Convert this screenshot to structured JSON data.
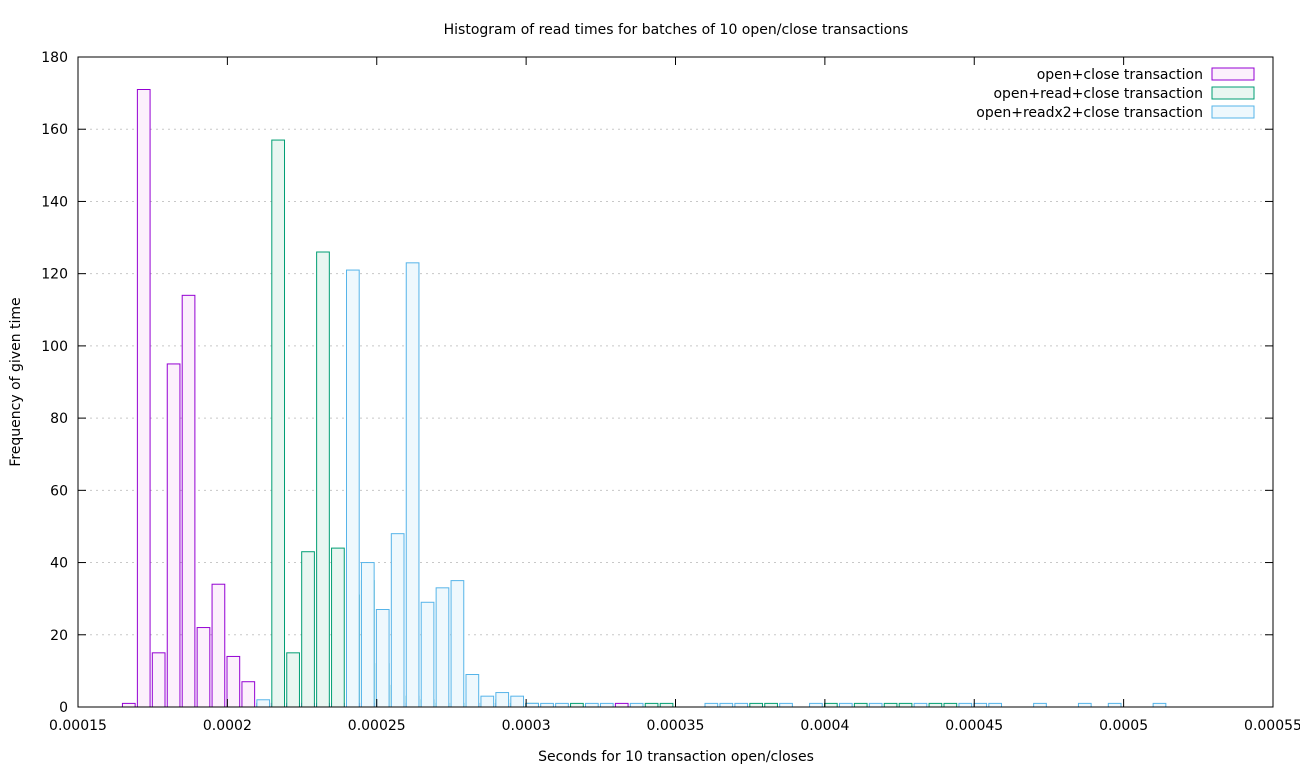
{
  "chart_data": {
    "type": "bar",
    "title": "Histogram of read times for batches of 10 open/close transactions",
    "xlabel": "Seconds for 10 transaction open/closes",
    "ylabel": "Frequency of given time",
    "xlim": [
      0.00015,
      0.00055
    ],
    "ylim": [
      0,
      180
    ],
    "xticks": [
      "0.00015",
      "0.0002",
      "0.00025",
      "0.0003",
      "0.00035",
      "0.0004",
      "0.00045",
      "0.0005",
      "0.00055"
    ],
    "yticks": [
      "0",
      "20",
      "40",
      "60",
      "80",
      "100",
      "120",
      "140",
      "160",
      "180"
    ],
    "grid": true,
    "legend_position": "top-right",
    "bin_width": 5e-06,
    "series": [
      {
        "name": "open+close transaction",
        "color": "#9400d3",
        "fill": "#fcf0fc",
        "bins": [
          [
            0.000167,
            1
          ],
          [
            0.000172,
            171
          ],
          [
            0.000177,
            15
          ],
          [
            0.000182,
            95
          ],
          [
            0.000187,
            114
          ],
          [
            0.000192,
            22
          ],
          [
            0.000197,
            34
          ],
          [
            0.000202,
            14
          ],
          [
            0.000207,
            7
          ],
          [
            0.000212,
            1
          ],
          [
            0.000217,
            1
          ],
          [
            0.000222,
            1
          ],
          [
            0.000227,
            1
          ],
          [
            0.000232,
            1
          ],
          [
            0.000237,
            1
          ],
          [
            0.000242,
            1
          ],
          [
            0.000247,
            1
          ],
          [
            0.000262,
            1
          ],
          [
            0.000282,
            1
          ],
          [
            0.000292,
            1
          ],
          [
            0.000332,
            1
          ]
        ]
      },
      {
        "name": "open+read+close transaction",
        "color": "#009e73",
        "fill": "#e9f6f1",
        "bins": [
          [
            0.000212,
            1
          ],
          [
            0.000217,
            157
          ],
          [
            0.000222,
            15
          ],
          [
            0.000227,
            43
          ],
          [
            0.000232,
            126
          ],
          [
            0.000237,
            44
          ],
          [
            0.000242,
            31
          ],
          [
            0.000247,
            35
          ],
          [
            0.000252,
            12
          ],
          [
            0.000257,
            6
          ],
          [
            0.000262,
            3
          ],
          [
            0.000267,
            2
          ],
          [
            0.000272,
            1
          ],
          [
            0.000277,
            1
          ],
          [
            0.000282,
            1
          ],
          [
            0.000287,
            1
          ],
          [
            0.000292,
            2
          ],
          [
            0.000297,
            1
          ],
          [
            0.000302,
            1
          ],
          [
            0.000317,
            1
          ],
          [
            0.000342,
            1
          ],
          [
            0.000347,
            1
          ],
          [
            0.000377,
            1
          ],
          [
            0.000382,
            1
          ],
          [
            0.000402,
            1
          ],
          [
            0.000412,
            1
          ],
          [
            0.000422,
            1
          ],
          [
            0.000427,
            1
          ],
          [
            0.000437,
            1
          ],
          [
            0.000442,
            1
          ]
        ]
      },
      {
        "name": "open+readx2+close transaction",
        "color": "#56b4e9",
        "fill": "#eef8fd",
        "bins": [
          [
            0.000212,
            2
          ],
          [
            0.000242,
            121
          ],
          [
            0.000247,
            40
          ],
          [
            0.000252,
            27
          ],
          [
            0.000257,
            48
          ],
          [
            0.000262,
            123
          ],
          [
            0.000267,
            29
          ],
          [
            0.000272,
            33
          ],
          [
            0.000277,
            35
          ],
          [
            0.000282,
            9
          ],
          [
            0.000287,
            3
          ],
          [
            0.000292,
            4
          ],
          [
            0.000297,
            3
          ],
          [
            0.000302,
            1
          ],
          [
            0.000307,
            1
          ],
          [
            0.000312,
            1
          ],
          [
            0.000322,
            1
          ],
          [
            0.000327,
            1
          ],
          [
            0.000337,
            1
          ],
          [
            0.000362,
            1
          ],
          [
            0.000367,
            1
          ],
          [
            0.000372,
            1
          ],
          [
            0.000387,
            1
          ],
          [
            0.000397,
            1
          ],
          [
            0.000407,
            1
          ],
          [
            0.000417,
            1
          ],
          [
            0.000432,
            1
          ],
          [
            0.000447,
            1
          ],
          [
            0.000452,
            1
          ],
          [
            0.000457,
            1
          ],
          [
            0.000472,
            1
          ],
          [
            0.000487,
            1
          ],
          [
            0.000497,
            1
          ],
          [
            0.000512,
            1
          ]
        ]
      }
    ]
  }
}
